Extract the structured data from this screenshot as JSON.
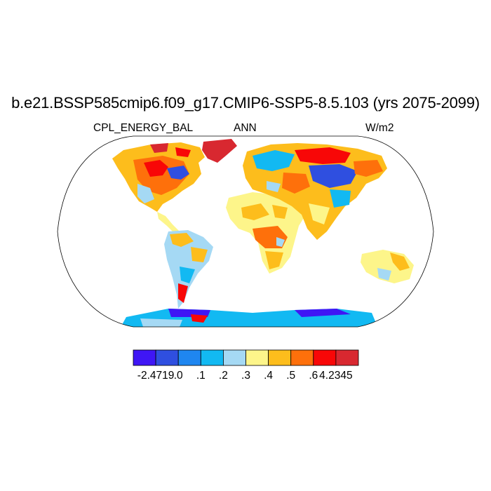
{
  "title": "b.e21.BSSP585cmip6.f09_g17.CMIP6-SSP5-8.5.103 (yrs 2075-2099)",
  "left_subtitle": "CPL_ENERGY_BAL",
  "center_subtitle": "ANN",
  "right_subtitle": "W/m2",
  "colorbar": {
    "colors": [
      "#3f16f5",
      "#2f4fe0",
      "#1f86f0",
      "#12b9f2",
      "#a5d9f4",
      "#fdf58a",
      "#fdbd1c",
      "#fe700b",
      "#f80707",
      "#d82830"
    ],
    "labels": [
      "-2.4719",
      ".0",
      ".1",
      ".2",
      ".3",
      ".4",
      ".5",
      ".6",
      "4.2345"
    ]
  },
  "map_colors": {
    "land_default": "#fdf58a",
    "ocean": "#ffffff",
    "coast": "#000000"
  }
}
